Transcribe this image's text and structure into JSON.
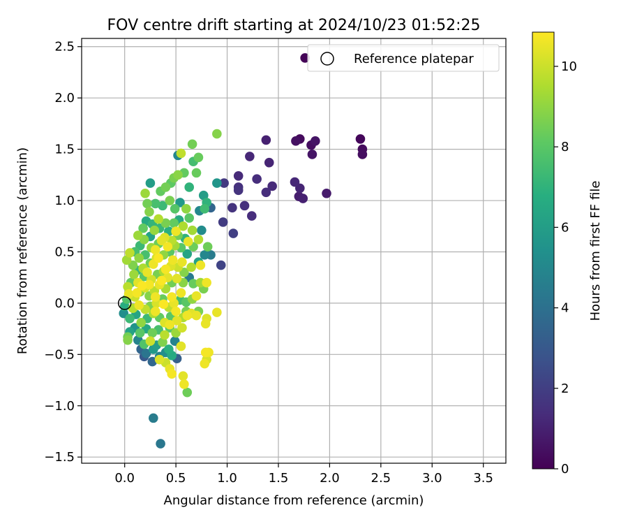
{
  "chart_data": {
    "type": "scatter",
    "title": "FOV centre drift starting at 2024/10/23 01:52:25",
    "xlabel": "Angular distance from reference (arcmin)",
    "ylabel": "Rotation from reference (arcmin)",
    "xlim": [
      -0.42,
      3.72
    ],
    "ylim": [
      -1.56,
      2.58
    ],
    "xticks": [
      "0.0",
      "0.5",
      "1.0",
      "1.5",
      "2.0",
      "2.5",
      "3.0",
      "3.5"
    ],
    "yticks": [
      "−1.5",
      "−1.0",
      "−0.5",
      "0.0",
      "0.5",
      "1.0",
      "1.5",
      "2.0",
      "2.5"
    ],
    "grid": true,
    "legend": {
      "position": "top-right",
      "entries": [
        "Reference platepar"
      ]
    },
    "reference_point": {
      "x": 0.0,
      "y": 0.0
    },
    "colorbar": {
      "label": "Hours from first FF file",
      "range": [
        0,
        10.85
      ],
      "ticks": [
        "0",
        "2",
        "4",
        "6",
        "8",
        "10"
      ],
      "colormap": "viridis"
    },
    "series": [
      {
        "points": [
          [
            1.76,
            2.39,
            0.1
          ],
          [
            1.71,
            1.6,
            0.3
          ],
          [
            1.67,
            1.58,
            0.5
          ],
          [
            1.82,
            1.54,
            0.4
          ],
          [
            1.86,
            1.58,
            0.6
          ],
          [
            1.83,
            1.45,
            0.6
          ],
          [
            2.3,
            1.6,
            0.2
          ],
          [
            2.32,
            1.5,
            0.3
          ],
          [
            2.32,
            1.45,
            0.4
          ],
          [
            1.38,
            1.59,
            1.0
          ],
          [
            1.22,
            1.43,
            1.2
          ],
          [
            1.41,
            1.37,
            1.1
          ],
          [
            1.11,
            1.24,
            1.3
          ],
          [
            1.29,
            1.21,
            1.4
          ],
          [
            1.11,
            1.13,
            1.5
          ],
          [
            1.11,
            1.1,
            1.6
          ],
          [
            1.44,
            1.14,
            1.3
          ],
          [
            1.38,
            1.08,
            1.4
          ],
          [
            1.66,
            1.18,
            1.2
          ],
          [
            1.71,
            1.12,
            1.1
          ],
          [
            1.7,
            1.04,
            0.9
          ],
          [
            1.74,
            1.02,
            1.0
          ],
          [
            1.97,
            1.07,
            0.8
          ],
          [
            0.97,
            1.17,
            1.8
          ],
          [
            1.05,
            0.93,
            1.6
          ],
          [
            1.17,
            0.95,
            1.5
          ],
          [
            1.24,
            0.85,
            1.4
          ],
          [
            0.96,
            0.79,
            1.9
          ],
          [
            1.06,
            0.68,
            2.0
          ],
          [
            0.94,
            0.37,
            2.2
          ],
          [
            0.9,
            1.17,
            5.6
          ],
          [
            0.9,
            1.65,
            8.8
          ],
          [
            0.66,
            1.55,
            8.5
          ],
          [
            0.72,
            1.42,
            8.3
          ],
          [
            0.67,
            1.38,
            7.5
          ],
          [
            0.52,
            1.44,
            5.0
          ],
          [
            0.55,
            1.46,
            9.8
          ],
          [
            0.58,
            1.27,
            8.2
          ],
          [
            0.52,
            1.25,
            8.9
          ],
          [
            0.48,
            1.22,
            8.6
          ],
          [
            0.45,
            1.17,
            8.1
          ],
          [
            0.7,
            1.27,
            8.3
          ],
          [
            0.63,
            1.13,
            7.0
          ],
          [
            0.77,
            1.05,
            6.0
          ],
          [
            0.8,
            0.98,
            7.0
          ],
          [
            0.84,
            0.93,
            3.5
          ],
          [
            0.73,
            0.9,
            5.0
          ],
          [
            0.78,
            0.92,
            7.4
          ],
          [
            0.4,
            1.13,
            8.5
          ],
          [
            0.35,
            1.09,
            8.2
          ],
          [
            0.25,
            1.17,
            6.0
          ],
          [
            0.2,
            1.07,
            9.2
          ],
          [
            0.22,
            0.97,
            8.5
          ],
          [
            0.24,
            0.89,
            8.8
          ],
          [
            0.3,
            0.97,
            7.6
          ],
          [
            0.37,
            0.95,
            7.3
          ],
          [
            0.44,
            1.0,
            8.6
          ],
          [
            0.49,
            0.92,
            7.9
          ],
          [
            0.54,
            0.98,
            5.8
          ],
          [
            0.6,
            0.92,
            9.0
          ],
          [
            0.4,
            0.78,
            8.6
          ],
          [
            0.33,
            0.82,
            9.6
          ],
          [
            0.27,
            0.77,
            7.1
          ],
          [
            0.21,
            0.8,
            6.6
          ],
          [
            0.18,
            0.73,
            8.2
          ],
          [
            0.13,
            0.66,
            9.2
          ],
          [
            0.15,
            0.56,
            7.3
          ],
          [
            0.19,
            0.62,
            8.9
          ],
          [
            0.25,
            0.65,
            6.2
          ],
          [
            0.29,
            0.71,
            9.1
          ],
          [
            0.34,
            0.73,
            7.2
          ],
          [
            0.43,
            0.7,
            6.8
          ],
          [
            0.48,
            0.78,
            8.2
          ],
          [
            0.53,
            0.81,
            6.5
          ],
          [
            0.57,
            0.75,
            9.5
          ],
          [
            0.63,
            0.83,
            8.0
          ],
          [
            0.66,
            0.71,
            9.3
          ],
          [
            0.59,
            0.63,
            7.0
          ],
          [
            0.52,
            0.66,
            8.5
          ],
          [
            0.46,
            0.61,
            9.7
          ],
          [
            0.39,
            0.64,
            10.3
          ],
          [
            0.33,
            0.58,
            8.4
          ],
          [
            0.26,
            0.54,
            9.2
          ],
          [
            0.2,
            0.47,
            7.6
          ],
          [
            0.14,
            0.44,
            9.0
          ],
          [
            0.1,
            0.5,
            7.6
          ],
          [
            0.05,
            0.49,
            9.8
          ],
          [
            0.02,
            0.42,
            9.3
          ],
          [
            0.08,
            0.37,
            8.7
          ],
          [
            0.12,
            0.32,
            7.2
          ],
          [
            0.18,
            0.34,
            9.5
          ],
          [
            0.25,
            0.39,
            8.4
          ],
          [
            0.31,
            0.44,
            10.2
          ],
          [
            0.38,
            0.47,
            9.0
          ],
          [
            0.44,
            0.5,
            8.0
          ],
          [
            0.49,
            0.56,
            9.3
          ],
          [
            0.55,
            0.54,
            8.0
          ],
          [
            0.61,
            0.48,
            6.3
          ],
          [
            0.67,
            0.55,
            8.4
          ],
          [
            0.72,
            0.62,
            9.6
          ],
          [
            0.78,
            0.47,
            5.0
          ],
          [
            0.81,
            0.55,
            8.4
          ],
          [
            0.84,
            0.47,
            4.5
          ],
          [
            0.75,
            0.71,
            5.2
          ],
          [
            0.72,
            0.4,
            6.2
          ],
          [
            0.65,
            0.35,
            9.6
          ],
          [
            0.58,
            0.3,
            8.8
          ],
          [
            0.52,
            0.35,
            10.0
          ],
          [
            0.45,
            0.36,
            10.3
          ],
          [
            0.38,
            0.31,
            9.4
          ],
          [
            0.32,
            0.28,
            8.6
          ],
          [
            0.26,
            0.23,
            10.1
          ],
          [
            0.19,
            0.26,
            8.0
          ],
          [
            0.13,
            0.2,
            10.4
          ],
          [
            0.09,
            0.28,
            9.2
          ],
          [
            0.06,
            0.2,
            8.2
          ],
          [
            0.03,
            0.16,
            9.7
          ],
          [
            0.04,
            0.09,
            10.5
          ],
          [
            0.1,
            0.06,
            10.0
          ],
          [
            0.15,
            0.11,
            9.0
          ],
          [
            0.2,
            0.15,
            10.2
          ],
          [
            0.24,
            0.07,
            8.8
          ],
          [
            0.29,
            0.12,
            9.7
          ],
          [
            0.34,
            0.18,
            10.5
          ],
          [
            0.4,
            0.14,
            9.4
          ],
          [
            0.46,
            0.2,
            8.5
          ],
          [
            0.51,
            0.24,
            10.4
          ],
          [
            0.57,
            0.2,
            8.9
          ],
          [
            0.63,
            0.25,
            4.4
          ],
          [
            0.67,
            0.19,
            8.3
          ],
          [
            0.74,
            0.2,
            9.3
          ],
          [
            0.77,
            0.14,
            8.6
          ],
          [
            0.7,
            0.07,
            10.5
          ],
          [
            0.66,
            0.04,
            9.0
          ],
          [
            0.6,
            0.01,
            8.0
          ],
          [
            0.54,
            0.03,
            7.5
          ],
          [
            0.48,
            0.0,
            10.5
          ],
          [
            0.43,
            -0.04,
            9.8
          ],
          [
            0.37,
            0.04,
            8.3
          ],
          [
            0.31,
            0.0,
            10.2
          ],
          [
            0.25,
            -0.03,
            8.7
          ],
          [
            0.2,
            -0.06,
            9.8
          ],
          [
            0.14,
            -0.02,
            10.6
          ],
          [
            0.08,
            -0.05,
            9.6
          ],
          [
            0.02,
            0.04,
            7.8
          ],
          [
            0.0,
            -0.03,
            6.7
          ],
          [
            -0.01,
            -0.1,
            5.3
          ],
          [
            0.05,
            -0.15,
            7.3
          ],
          [
            0.11,
            -0.11,
            6.3
          ],
          [
            0.16,
            -0.19,
            9.0
          ],
          [
            0.22,
            -0.15,
            7.3
          ],
          [
            0.28,
            -0.1,
            9.5
          ],
          [
            0.34,
            -0.14,
            8.2
          ],
          [
            0.39,
            -0.19,
            10.3
          ],
          [
            0.45,
            -0.13,
            8.0
          ],
          [
            0.51,
            -0.17,
            10.4
          ],
          [
            0.57,
            -0.14,
            9.5
          ],
          [
            0.6,
            -0.08,
            8.6
          ],
          [
            0.8,
            -0.15,
            10.3
          ],
          [
            0.79,
            -0.2,
            10.5
          ],
          [
            0.9,
            -0.09,
            10.5
          ],
          [
            0.72,
            -0.08,
            8.6
          ],
          [
            0.56,
            -0.24,
            10.1
          ],
          [
            0.5,
            -0.29,
            9.2
          ],
          [
            0.44,
            -0.24,
            8.1
          ],
          [
            0.39,
            -0.31,
            9.7
          ],
          [
            0.33,
            -0.26,
            7.6
          ],
          [
            0.27,
            -0.29,
            8.4
          ],
          [
            0.21,
            -0.25,
            6.5
          ],
          [
            0.15,
            -0.29,
            8.0
          ],
          [
            0.1,
            -0.24,
            5.5
          ],
          [
            0.05,
            -0.28,
            6.2
          ],
          [
            0.03,
            -0.33,
            8.5
          ],
          [
            0.03,
            -0.36,
            8.8
          ],
          [
            0.13,
            -0.36,
            4.8
          ],
          [
            0.19,
            -0.4,
            7.8
          ],
          [
            0.25,
            -0.37,
            10.0
          ],
          [
            0.31,
            -0.41,
            6.0
          ],
          [
            0.37,
            -0.38,
            8.7
          ],
          [
            0.43,
            -0.45,
            6.8
          ],
          [
            0.49,
            -0.37,
            4.8
          ],
          [
            0.55,
            -0.42,
            10.4
          ],
          [
            0.16,
            -0.45,
            3.5
          ],
          [
            0.21,
            -0.49,
            4.2
          ],
          [
            0.28,
            -0.45,
            5.8
          ],
          [
            0.34,
            -0.52,
            4.8
          ],
          [
            0.4,
            -0.48,
            5.3
          ],
          [
            0.46,
            -0.51,
            6.6
          ],
          [
            0.51,
            -0.54,
            3.3
          ],
          [
            0.19,
            -0.52,
            3.0
          ],
          [
            0.27,
            -0.57,
            3.6
          ],
          [
            0.34,
            -0.55,
            10.3
          ],
          [
            0.4,
            -0.58,
            10.0
          ],
          [
            0.44,
            -0.64,
            10.5
          ],
          [
            0.46,
            -0.69,
            10.7
          ],
          [
            0.57,
            -0.71,
            10.4
          ],
          [
            0.58,
            -0.79,
            10.6
          ],
          [
            0.61,
            -0.87,
            8.4
          ],
          [
            0.79,
            -0.48,
            10.7
          ],
          [
            0.82,
            -0.48,
            10.6
          ],
          [
            0.8,
            -0.55,
            10.2
          ],
          [
            0.78,
            -0.59,
            10.6
          ],
          [
            0.28,
            -1.12,
            4.5
          ],
          [
            0.35,
            -1.37,
            4.3
          ],
          [
            0.3,
            0.52,
            10.6
          ],
          [
            0.33,
            0.44,
            10.8
          ],
          [
            0.4,
            0.33,
            10.7
          ],
          [
            0.36,
            0.22,
            10.8
          ],
          [
            0.28,
            0.38,
            10.6
          ],
          [
            0.22,
            0.3,
            10.5
          ],
          [
            0.42,
            0.25,
            10.4
          ],
          [
            0.47,
            0.42,
            10.6
          ],
          [
            0.24,
            0.18,
            10.7
          ],
          [
            0.3,
            0.06,
            10.6
          ],
          [
            0.46,
            0.06,
            10.7
          ],
          [
            0.55,
            0.1,
            10.6
          ],
          [
            0.56,
            0.4,
            10.5
          ],
          [
            0.62,
            0.6,
            10.5
          ],
          [
            0.5,
            0.7,
            10.6
          ],
          [
            0.42,
            0.55,
            10.7
          ],
          [
            0.36,
            0.61,
            10.4
          ],
          [
            0.17,
            0.17,
            10.8
          ],
          [
            0.12,
            0.1,
            10.7
          ],
          [
            0.3,
            -0.08,
            10.6
          ],
          [
            0.38,
            -0.01,
            10.8
          ],
          [
            0.5,
            -0.08,
            10.7
          ],
          [
            0.61,
            -0.12,
            10.6
          ],
          [
            0.44,
            -0.21,
            10.6
          ],
          [
            0.65,
            -0.1,
            10.4
          ],
          [
            0.7,
            -0.12,
            10.5
          ],
          [
            0.74,
            0.37,
            10.6
          ],
          [
            0.8,
            0.2,
            10.6
          ]
        ]
      }
    ]
  }
}
